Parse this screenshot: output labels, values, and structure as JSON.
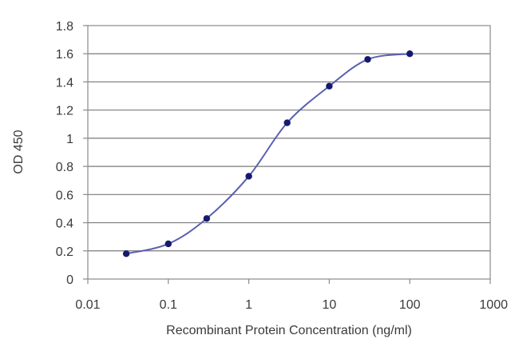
{
  "chart_data": {
    "type": "line",
    "title": "",
    "xlabel": "Recombinant Protein Concentration (ng/ml)",
    "ylabel": "OD 450",
    "xscale": "log",
    "xlim": [
      0.01,
      1000
    ],
    "ylim": [
      0,
      1.8
    ],
    "grid": "horizontal",
    "legend": "none",
    "x_tick_labels": [
      "0.01",
      "0.1",
      "1",
      "10",
      "100",
      "1000"
    ],
    "y_tick_labels": [
      "0",
      "0.2",
      "0.4",
      "0.6",
      "0.8",
      "1",
      "1.2",
      "1.4",
      "1.6",
      "1.8"
    ],
    "series": [
      {
        "x": [
          0.03,
          0.1,
          0.3,
          1,
          3,
          10,
          30,
          100
        ],
        "y": [
          0.18,
          0.25,
          0.43,
          0.73,
          1.11,
          1.37,
          1.56,
          1.6
        ]
      }
    ],
    "colors": {
      "line": "#5a5fb0",
      "marker": "#151a6e",
      "grid": "#7a7a7a",
      "axis": "#8a8a8a"
    }
  }
}
